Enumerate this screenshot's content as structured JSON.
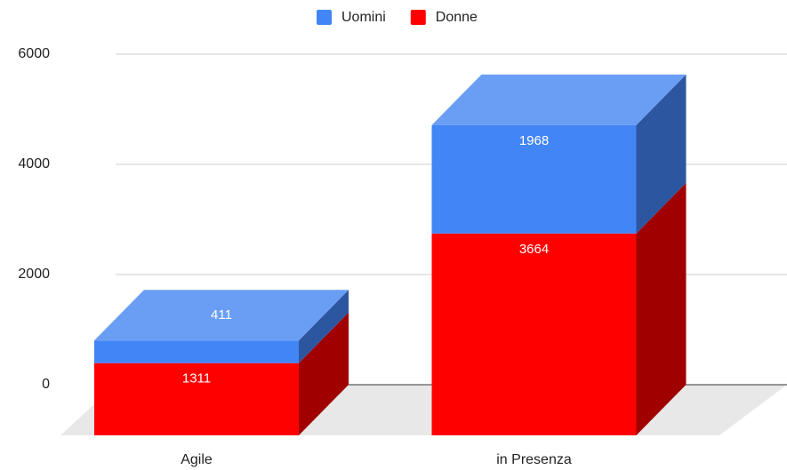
{
  "chart_data": {
    "type": "bar3d_stacked",
    "categories": [
      "Agile",
      "in Presenza"
    ],
    "series": [
      {
        "name": "Uomini",
        "color": "#4285f4",
        "side": "#2d56a0",
        "top": "#6a9ef5",
        "values": [
          411,
          1968
        ]
      },
      {
        "name": "Donne",
        "color": "#ff0000",
        "side": "#a00000",
        "top": "#ff5a5a",
        "values": [
          1311,
          3664
        ]
      }
    ],
    "ylim": [
      0,
      6000
    ],
    "yticks": [
      0,
      2000,
      4000,
      6000
    ],
    "grid": true,
    "legend": "top"
  }
}
